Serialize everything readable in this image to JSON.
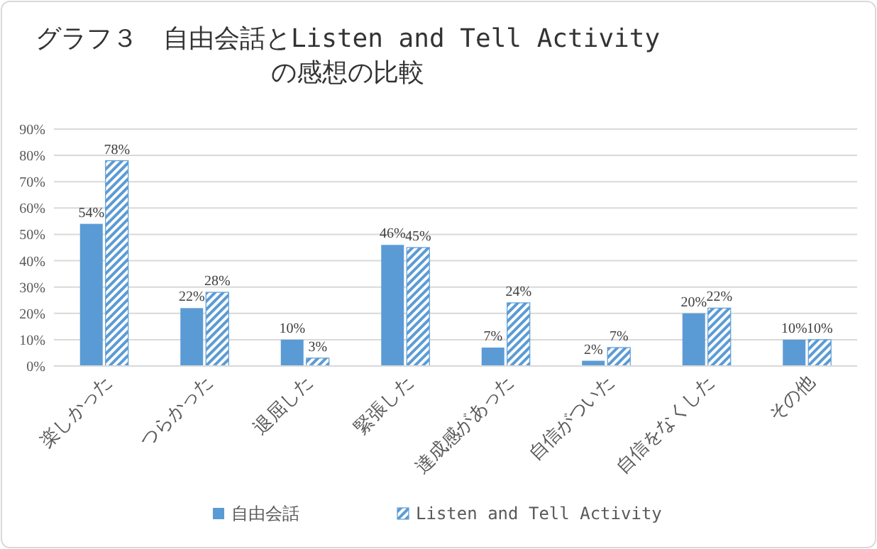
{
  "chart_data": {
    "type": "bar",
    "title": "グラフ３　自由会話とListen and Tell Activity の感想の比較",
    "categories": [
      "楽しかった",
      "つらかった",
      "退屈した",
      "緊張した",
      "達成感があった",
      "自信がついた",
      "自信をなくした",
      "その他"
    ],
    "series": [
      {
        "name": "自由会話",
        "color": "#5b9bd5",
        "values": [
          54,
          22,
          10,
          46,
          7,
          2,
          20,
          10
        ],
        "value_labels": [
          "54%",
          "22%",
          "10%",
          "46%",
          "7%",
          "2%",
          "20%",
          "10%"
        ]
      },
      {
        "name": "Listen and Tell Activity",
        "color": "#5b9bd5",
        "values": [
          78,
          28,
          3,
          45,
          24,
          7,
          22,
          10
        ],
        "value_labels": [
          "78%",
          "28%",
          "3%",
          "45%",
          "24%",
          "7%",
          "22%",
          "10%"
        ]
      }
    ],
    "ylim": [
      0,
      90
    ],
    "yticks": [
      {
        "value": 0,
        "label": "0%"
      },
      {
        "value": 10,
        "label": "10%"
      },
      {
        "value": 20,
        "label": "20%"
      },
      {
        "value": 30,
        "label": "30%"
      },
      {
        "value": 40,
        "label": "40%"
      },
      {
        "value": 50,
        "label": "50%"
      },
      {
        "value": 60,
        "label": "60%"
      },
      {
        "value": 70,
        "label": "70%"
      },
      {
        "value": 80,
        "label": "80%"
      },
      {
        "value": 90,
        "label": "90%"
      }
    ],
    "grid": "y",
    "legend": "bottom"
  }
}
